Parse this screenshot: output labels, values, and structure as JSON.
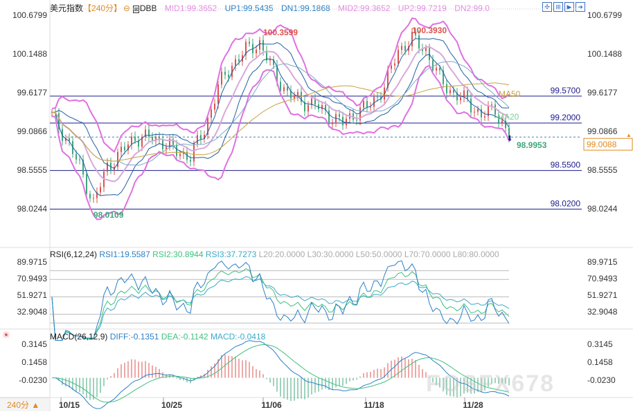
{
  "header": {
    "symbol": "美元指数",
    "period": "【240分】",
    "indicator": "DBB",
    "mid1": "MID1:99.3652",
    "up1": "UP1:99.5435",
    "dn1": "DN1:99.1868",
    "mid2": "MID2:99.3652",
    "up2": "UP2:99.7219",
    "dn2": "DN2:99.0"
  },
  "toolbar_icons": [
    "crosshair-icon",
    "zoom-in-icon",
    "play-icon",
    "exit-icon"
  ],
  "rsi_header": {
    "title": "RSI(6,12,24)",
    "rsi1": "RSI1:19.5587",
    "rsi2": "RSI2:30.8944",
    "rsi3": "RSI3:37.7273",
    "l20": "L20:20.0000",
    "l30": "L30:30.0000",
    "l50": "L50:50.0000",
    "l70": "L70:70.0000",
    "l80": "L80:80.0000"
  },
  "macd_header": {
    "title": "MACD(26,12,9)",
    "diff": "DIFF:-0.1351",
    "dea": "DEA:-0.1142",
    "macd": "MACD:-0.0418"
  },
  "footer": {
    "period_button": "240分 ▲"
  },
  "watermark": "FOSFX678",
  "colors": {
    "up": "#d9534f",
    "down": "#3fa57a",
    "bb": "#e070e0",
    "navy": "#1a1a8c",
    "ma50": "#c8a040",
    "ma20": "#7ccf9a",
    "current": "#e08a20"
  },
  "chart_data": {
    "type": "candlestick",
    "title": "美元指数 240分",
    "x_tick_labels": [
      "10/15",
      "10/25",
      "11/06",
      "11/18",
      "11/28"
    ],
    "price_axis_labels": [
      "100.6799",
      "100.1488",
      "99.6177",
      "99.0866",
      "98.5555",
      "98.0244"
    ],
    "price_range": [
      98.0244,
      100.6799
    ],
    "close_keypoints": [
      99.3,
      99.0,
      98.6,
      98.1,
      98.6,
      98.8,
      99.0,
      99.0,
      98.95,
      98.8,
      98.75,
      99.1,
      99.7,
      100.0,
      100.2,
      100.3,
      99.9,
      99.6,
      99.5,
      99.45,
      99.3,
      99.2,
      99.35,
      99.45,
      99.7,
      100.2,
      100.35,
      100.2,
      99.8,
      99.6,
      99.5,
      99.3,
      99.4,
      99.0
    ],
    "annotations": {
      "high1": "100.3599",
      "high2": "100.3930",
      "low": "98.0109",
      "last_low": "98.9953",
      "ma50_label": "MA50",
      "ma20_label": "MA20"
    },
    "horizontal_levels": [
      {
        "value": 99.57,
        "label": "99.5700"
      },
      {
        "value": 99.2,
        "label": "99.2000"
      },
      {
        "value": 98.55,
        "label": "98.5500"
      },
      {
        "value": 98.02,
        "label": "98.0200"
      }
    ],
    "current_price": {
      "value": 99.0088,
      "label": "99.0088"
    },
    "rsi_axis_labels": [
      "89.9715",
      "70.9493",
      "51.9271",
      "32.9048"
    ],
    "rsi_range": [
      20,
      95
    ],
    "rsi_levels": [
      20,
      30,
      50,
      70,
      80
    ],
    "macd_axis_labels": [
      "0.3145",
      "0.1458",
      "-0.0230"
    ],
    "macd_range": [
      -0.2,
      0.35
    ]
  }
}
